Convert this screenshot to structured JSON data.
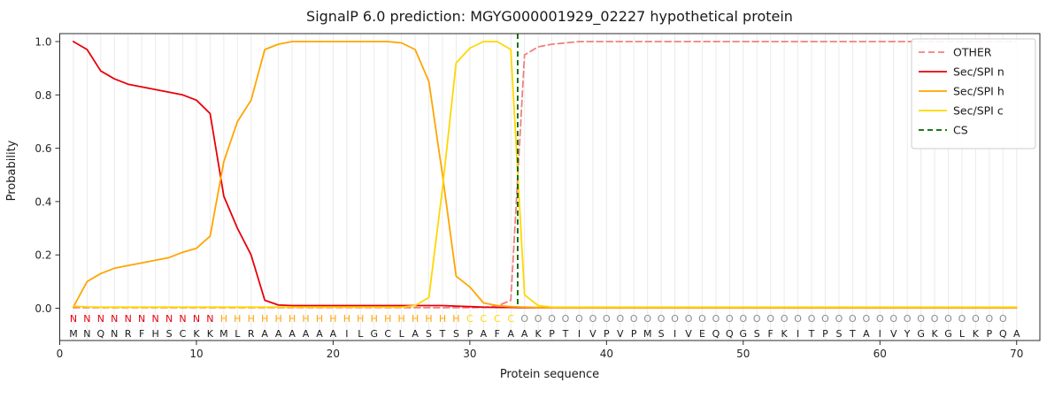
{
  "chart_data": {
    "type": "line",
    "title": "SignalP 6.0 prediction: MGYG000001929_02227 hypothetical protein",
    "xlabel": "Protein sequence",
    "ylabel": "Probability",
    "xlim": [
      0,
      71.7
    ],
    "ylim": [
      -0.12,
      1.03
    ],
    "x_ticks": [
      0,
      10,
      20,
      30,
      40,
      50,
      60,
      70
    ],
    "y_ticks": [
      0.0,
      0.2,
      0.4,
      0.6,
      0.8,
      1.0
    ],
    "grid": "vertical-per-residue",
    "legend_position": "upper right",
    "x": [
      1,
      2,
      3,
      4,
      5,
      6,
      7,
      8,
      9,
      10,
      11,
      12,
      13,
      14,
      15,
      16,
      17,
      18,
      19,
      20,
      21,
      22,
      23,
      24,
      25,
      26,
      27,
      28,
      29,
      30,
      31,
      32,
      33,
      34,
      35,
      36,
      37,
      38,
      39,
      40,
      41,
      42,
      43,
      44,
      45,
      46,
      47,
      48,
      49,
      50,
      51,
      52,
      53,
      54,
      55,
      56,
      57,
      58,
      59,
      60,
      61,
      62,
      63,
      64,
      65,
      66,
      67,
      68,
      69,
      70
    ],
    "series": [
      {
        "name": "OTHER",
        "color": "#f08080",
        "dash": "7 4",
        "values": [
          0.002,
          0.002,
          0.002,
          0.002,
          0.002,
          0.002,
          0.002,
          0.002,
          0.002,
          0.002,
          0.002,
          0.002,
          0.002,
          0.002,
          0.002,
          0.002,
          0.002,
          0.002,
          0.002,
          0.002,
          0.002,
          0.002,
          0.002,
          0.002,
          0.002,
          0.002,
          0.002,
          0.002,
          0.002,
          0.002,
          0.003,
          0.008,
          0.03,
          0.95,
          0.98,
          0.99,
          0.995,
          1.0,
          1.0,
          1.0,
          1.0,
          1.0,
          1.0,
          1.0,
          1.0,
          1.0,
          1.0,
          1.0,
          1.0,
          1.0,
          1.0,
          1.0,
          1.0,
          1.0,
          1.0,
          1.0,
          1.0,
          1.0,
          1.0,
          1.0,
          1.0,
          1.0,
          1.0,
          1.0,
          1.0,
          1.0,
          1.0,
          1.0,
          1.0,
          1.0
        ]
      },
      {
        "name": "Sec/SPI n",
        "color": "#e8000b",
        "dash": null,
        "values": [
          1.0,
          0.97,
          0.89,
          0.86,
          0.84,
          0.83,
          0.82,
          0.81,
          0.8,
          0.78,
          0.73,
          0.42,
          0.3,
          0.2,
          0.03,
          0.012,
          0.01,
          0.01,
          0.01,
          0.01,
          0.01,
          0.01,
          0.01,
          0.01,
          0.01,
          0.01,
          0.01,
          0.01,
          0.008,
          0.006,
          0.004,
          0.003,
          0.003,
          0.002,
          0.002,
          0.002,
          0.002,
          0.002,
          0.002,
          0.002,
          0.002,
          0.002,
          0.002,
          0.002,
          0.002,
          0.002,
          0.002,
          0.002,
          0.002,
          0.002,
          0.002,
          0.002,
          0.002,
          0.002,
          0.002,
          0.002,
          0.002,
          0.002,
          0.002,
          0.002,
          0.002,
          0.002,
          0.002,
          0.002,
          0.002,
          0.002,
          0.002,
          0.002,
          0.002,
          0.002
        ]
      },
      {
        "name": "Sec/SPI h",
        "color": "#ffa500",
        "dash": null,
        "values": [
          0.005,
          0.1,
          0.13,
          0.15,
          0.16,
          0.17,
          0.18,
          0.19,
          0.21,
          0.225,
          0.27,
          0.55,
          0.7,
          0.78,
          0.97,
          0.99,
          1.0,
          1.0,
          1.0,
          1.0,
          1.0,
          1.0,
          1.0,
          1.0,
          0.995,
          0.97,
          0.85,
          0.5,
          0.12,
          0.08,
          0.02,
          0.01,
          0.006,
          0.004,
          0.003,
          0.003,
          0.003,
          0.003,
          0.003,
          0.003,
          0.003,
          0.003,
          0.003,
          0.003,
          0.003,
          0.003,
          0.003,
          0.003,
          0.003,
          0.003,
          0.003,
          0.003,
          0.003,
          0.003,
          0.003,
          0.003,
          0.003,
          0.003,
          0.003,
          0.003,
          0.003,
          0.003,
          0.003,
          0.003,
          0.003,
          0.003,
          0.003,
          0.003,
          0.003,
          0.003
        ]
      },
      {
        "name": "Sec/SPI c",
        "color": "#ffd700",
        "dash": null,
        "values": [
          0.008,
          0.005,
          0.004,
          0.004,
          0.004,
          0.004,
          0.004,
          0.004,
          0.004,
          0.004,
          0.004,
          0.004,
          0.004,
          0.004,
          0.004,
          0.004,
          0.004,
          0.004,
          0.004,
          0.004,
          0.004,
          0.004,
          0.004,
          0.004,
          0.004,
          0.01,
          0.04,
          0.45,
          0.92,
          0.975,
          1.0,
          1.0,
          0.97,
          0.05,
          0.01,
          0.004,
          0.004,
          0.004,
          0.004,
          0.004,
          0.004,
          0.004,
          0.004,
          0.004,
          0.004,
          0.004,
          0.004,
          0.004,
          0.004,
          0.004,
          0.004,
          0.004,
          0.004,
          0.004,
          0.004,
          0.004,
          0.004,
          0.004,
          0.004,
          0.004,
          0.004,
          0.004,
          0.004,
          0.004,
          0.004,
          0.004,
          0.004,
          0.004,
          0.004,
          0.004
        ]
      }
    ],
    "cs_line": {
      "name": "CS",
      "position": 33.5,
      "color": "#006400",
      "dash": "6 4"
    },
    "sequence": "MNQNRFHSCKKMLRAAAAAAILGCLASTSPAFAAKPTIVPVPMSIVEQQGSFKITPSTAIVYGKGLKPQA",
    "region_labels": "NNNNNNNNNNNHHHHHHHHHHHHHHHHHHCCCCOOOOOOOOOOOOOOOOOOOOOOOOOOOOOOOOOOOO",
    "region_colors": {
      "N": "#e8000b",
      "H": "#ffa500",
      "C": "#ffd700",
      "O": "#8c8c8c"
    },
    "residue_color": "#1a1a1a"
  },
  "legend": {
    "entries": [
      {
        "label": "OTHER"
      },
      {
        "label": "Sec/SPI n"
      },
      {
        "label": "Sec/SPI h"
      },
      {
        "label": "Sec/SPI c"
      },
      {
        "label": "CS"
      }
    ]
  }
}
